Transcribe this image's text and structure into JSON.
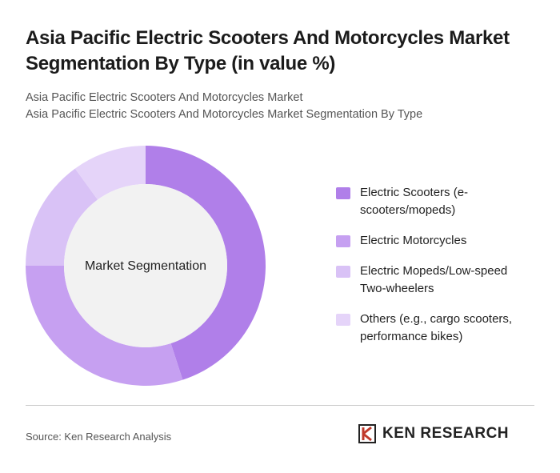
{
  "chart_data": {
    "type": "donut",
    "title": "Asia Pacific Electric Scooters And Motorcycles Market Segmentation By Type (in value %)",
    "subtitles": [
      "Asia Pacific Electric Scooters And Motorcycles Market",
      "Asia Pacific Electric Scooters And Motorcycles Market Segmentation By Type"
    ],
    "center_label": "Market Segmentation",
    "categories": [
      "Electric Scooters (e-scooters/mopeds)",
      "Electric Motorcycles",
      "Electric Mopeds/Low-speed Two-wheelers",
      "Others (e.g., cargo scooters, performance bikes)"
    ],
    "values": [
      45,
      30,
      15,
      10
    ],
    "colors": [
      "#b07fe9",
      "#c6a0f1",
      "#d9c2f6",
      "#e5d4f9"
    ]
  },
  "source": "Source: Ken Research Analysis",
  "logo": "KEN RESEARCH"
}
